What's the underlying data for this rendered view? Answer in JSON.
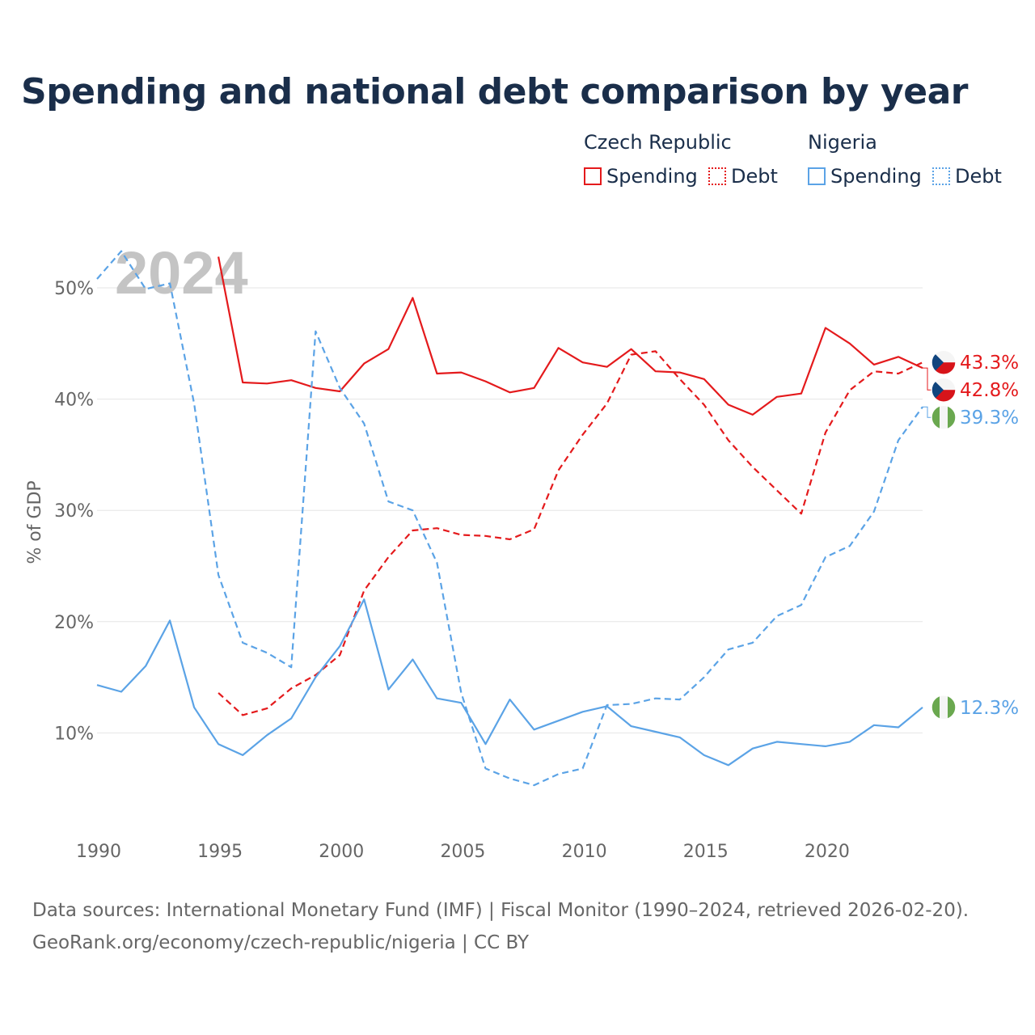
{
  "chart_data": {
    "type": "line",
    "title": "Spending and national debt comparison by year",
    "year_watermark": "2024",
    "ylabel": "% of GDP",
    "xlabel": "",
    "xlim": [
      1990,
      2024
    ],
    "ylim": [
      0,
      55
    ],
    "y_ticks": [
      10,
      20,
      30,
      40,
      50
    ],
    "y_tick_labels": [
      "10%",
      "20%",
      "30%",
      "40%",
      "50%"
    ],
    "x_ticks": [
      1990,
      1995,
      2000,
      2005,
      2010,
      2015,
      2020
    ],
    "x_tick_labels": [
      "1990",
      "1995",
      "2000",
      "2005",
      "2010",
      "2015",
      "2020"
    ],
    "grid": true,
    "legend": {
      "groups": [
        {
          "name": "Czech Republic",
          "items": [
            "Spending",
            "Debt"
          ]
        },
        {
          "name": "Nigeria",
          "items": [
            "Spending",
            "Debt"
          ]
        }
      ],
      "placement": "top-right"
    },
    "colors": {
      "czech": "#e41a1c",
      "nigeria": "#5ba3e6",
      "text": "#1a2e4a",
      "axis_text": "#666666",
      "grid": "#e6e6e6",
      "watermark": "#c4c4c4"
    },
    "series": [
      {
        "name": "Czech Republic Spending",
        "country": "Czech Republic",
        "metric": "Spending",
        "color": "#e41a1c",
        "style": "solid",
        "x": [
          1995,
          1996,
          1997,
          1998,
          1999,
          2000,
          2001,
          2002,
          2003,
          2004,
          2005,
          2006,
          2007,
          2008,
          2009,
          2010,
          2011,
          2012,
          2013,
          2014,
          2015,
          2016,
          2017,
          2018,
          2019,
          2020,
          2021,
          2022,
          2023,
          2024
        ],
        "values": [
          52.8,
          41.5,
          41.4,
          41.7,
          41.0,
          40.7,
          43.2,
          44.5,
          49.1,
          42.3,
          42.4,
          41.6,
          40.6,
          41.0,
          44.6,
          43.3,
          42.9,
          44.5,
          42.5,
          42.4,
          41.8,
          39.5,
          38.6,
          40.2,
          40.5,
          46.4,
          45.0,
          43.1,
          43.8,
          42.8
        ],
        "end_label": "42.8%"
      },
      {
        "name": "Czech Republic Debt",
        "country": "Czech Republic",
        "metric": "Debt",
        "color": "#e41a1c",
        "style": "dashed",
        "x": [
          1995,
          1996,
          1997,
          1998,
          1999,
          2000,
          2001,
          2002,
          2003,
          2004,
          2005,
          2006,
          2007,
          2008,
          2009,
          2010,
          2011,
          2012,
          2013,
          2014,
          2015,
          2016,
          2017,
          2018,
          2019,
          2020,
          2021,
          2022,
          2023,
          2024
        ],
        "values": [
          13.6,
          11.6,
          12.2,
          14.0,
          15.2,
          17.0,
          22.8,
          25.8,
          28.2,
          28.4,
          27.8,
          27.7,
          27.4,
          28.3,
          33.6,
          36.8,
          39.6,
          44.0,
          44.3,
          41.8,
          39.5,
          36.3,
          33.9,
          31.8,
          29.7,
          37.0,
          40.8,
          42.5,
          42.3,
          43.3
        ],
        "end_label": "43.3%"
      },
      {
        "name": "Nigeria Spending",
        "country": "Nigeria",
        "metric": "Spending",
        "color": "#5ba3e6",
        "style": "solid",
        "x": [
          1990,
          1991,
          1992,
          1993,
          1994,
          1995,
          1996,
          1997,
          1998,
          1999,
          2000,
          2001,
          2002,
          2003,
          2004,
          2005,
          2006,
          2007,
          2008,
          2009,
          2010,
          2011,
          2012,
          2013,
          2014,
          2015,
          2016,
          2017,
          2018,
          2019,
          2020,
          2021,
          2022,
          2023,
          2024
        ],
        "values": [
          14.3,
          13.7,
          16.0,
          20.1,
          12.3,
          9.0,
          8.0,
          9.8,
          11.3,
          15.0,
          17.8,
          22.0,
          13.9,
          16.6,
          13.1,
          12.7,
          9.0,
          13.0,
          10.3,
          11.1,
          11.9,
          12.4,
          10.6,
          10.1,
          9.6,
          8.0,
          7.1,
          8.6,
          9.2,
          9.0,
          8.8,
          9.2,
          10.7,
          10.5,
          12.3
        ],
        "end_label": "12.3%"
      },
      {
        "name": "Nigeria Debt",
        "country": "Nigeria",
        "metric": "Debt",
        "color": "#5ba3e6",
        "style": "dashed",
        "x": [
          1990,
          1991,
          1992,
          1993,
          1994,
          1995,
          1996,
          1997,
          1998,
          1999,
          2000,
          2001,
          2002,
          2003,
          2004,
          2005,
          2006,
          2007,
          2008,
          2009,
          2010,
          2011,
          2012,
          2013,
          2014,
          2015,
          2016,
          2017,
          2018,
          2019,
          2020,
          2021,
          2022,
          2023,
          2024
        ],
        "values": [
          50.8,
          53.3,
          49.9,
          50.4,
          39.6,
          24.2,
          18.1,
          17.2,
          15.9,
          46.1,
          41.0,
          37.8,
          30.8,
          30.0,
          25.3,
          13.6,
          6.8,
          5.9,
          5.3,
          6.3,
          6.8,
          12.5,
          12.6,
          13.1,
          13.0,
          15.0,
          17.5,
          18.1,
          20.5,
          21.5,
          25.8,
          26.8,
          29.9,
          36.3,
          39.3
        ],
        "end_label": "39.3%"
      }
    ]
  },
  "sources_line1": "Data sources: International Monetary Fund (IMF) | Fiscal Monitor (1990–2024, retrieved 2026-02-20).",
  "sources_line2": "GeoRank.org/economy/czech-republic/nigeria | CC BY"
}
